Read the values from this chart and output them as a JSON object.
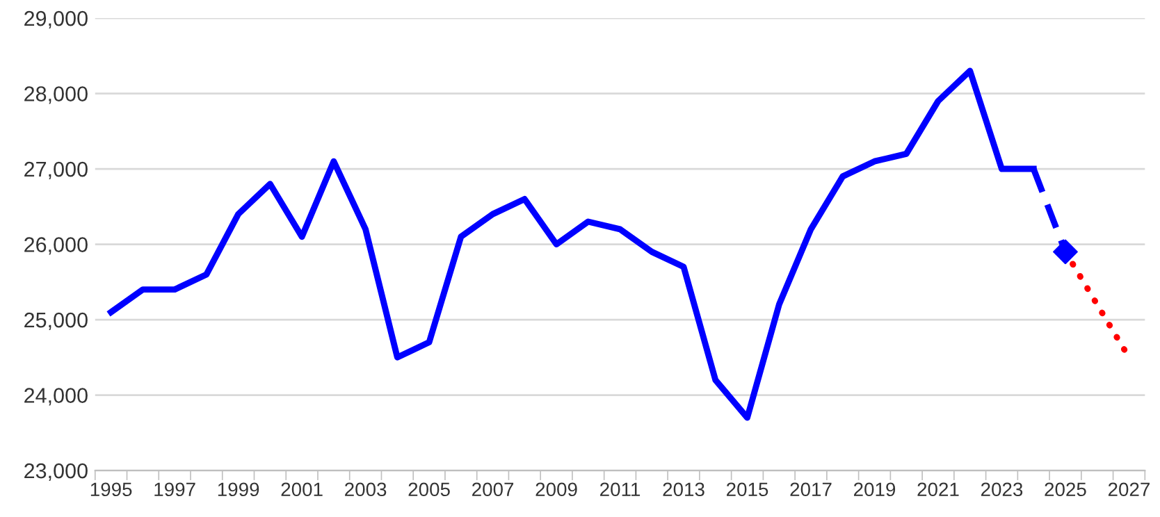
{
  "chart_data": {
    "type": "line",
    "categories": [
      "1995",
      null,
      "1997",
      null,
      "1999",
      null,
      "2001",
      null,
      "2003",
      null,
      "2005",
      null,
      "2007",
      null,
      "2009",
      null,
      "2011",
      null,
      "2013",
      null,
      "2015",
      null,
      "2017",
      null,
      "2019",
      null,
      "2021",
      null,
      "2023",
      null,
      "2025",
      null,
      "2027"
    ],
    "series": [
      {
        "color": "#0000ff",
        "line_style": "solid",
        "marker": "none",
        "values": [
          25100,
          25400,
          25400,
          25600,
          26400,
          26800,
          26100,
          27100,
          26200,
          24500,
          24700,
          26100,
          26400,
          26600,
          26000,
          26300,
          26200,
          25900,
          25700,
          24200,
          23700,
          25200,
          26200,
          26900,
          27100,
          27200,
          27900,
          28300,
          27000,
          27000,
          null,
          null,
          null
        ]
      },
      {
        "color": "#0000ff",
        "line_style": "dashed",
        "marker": "none",
        "values": [
          null,
          null,
          null,
          null,
          null,
          null,
          null,
          null,
          null,
          null,
          null,
          null,
          null,
          null,
          null,
          null,
          null,
          null,
          null,
          null,
          null,
          null,
          null,
          null,
          null,
          null,
          null,
          null,
          null,
          27000,
          25900,
          null,
          null
        ]
      },
      {
        "type": "scatter",
        "color": "#0000ff",
        "marker": "diamond",
        "values": [
          null,
          null,
          null,
          null,
          null,
          null,
          null,
          null,
          null,
          null,
          null,
          null,
          null,
          null,
          null,
          null,
          null,
          null,
          null,
          null,
          null,
          null,
          null,
          null,
          null,
          null,
          null,
          null,
          null,
          null,
          25900,
          null,
          null
        ]
      },
      {
        "color": "#ff0000",
        "line_style": "dotted",
        "marker": "none",
        "values": [
          null,
          null,
          null,
          null,
          null,
          null,
          null,
          null,
          null,
          null,
          null,
          null,
          null,
          null,
          null,
          null,
          null,
          null,
          null,
          null,
          null,
          null,
          null,
          null,
          null,
          null,
          null,
          null,
          null,
          null,
          25900,
          25200,
          24500
        ]
      }
    ],
    "ylim": [
      23000,
      29000
    ],
    "yticks": [
      {
        "value": 23000,
        "label": "23,000"
      },
      {
        "value": 24000,
        "label": "24,000"
      },
      {
        "value": 25000,
        "label": "25,000"
      },
      {
        "value": 26000,
        "label": "26,000"
      },
      {
        "value": 27000,
        "label": "27,000"
      },
      {
        "value": 28000,
        "label": "28,000"
      },
      {
        "value": 29000,
        "label": "29,000"
      }
    ],
    "grid": "y",
    "legend": false
  }
}
